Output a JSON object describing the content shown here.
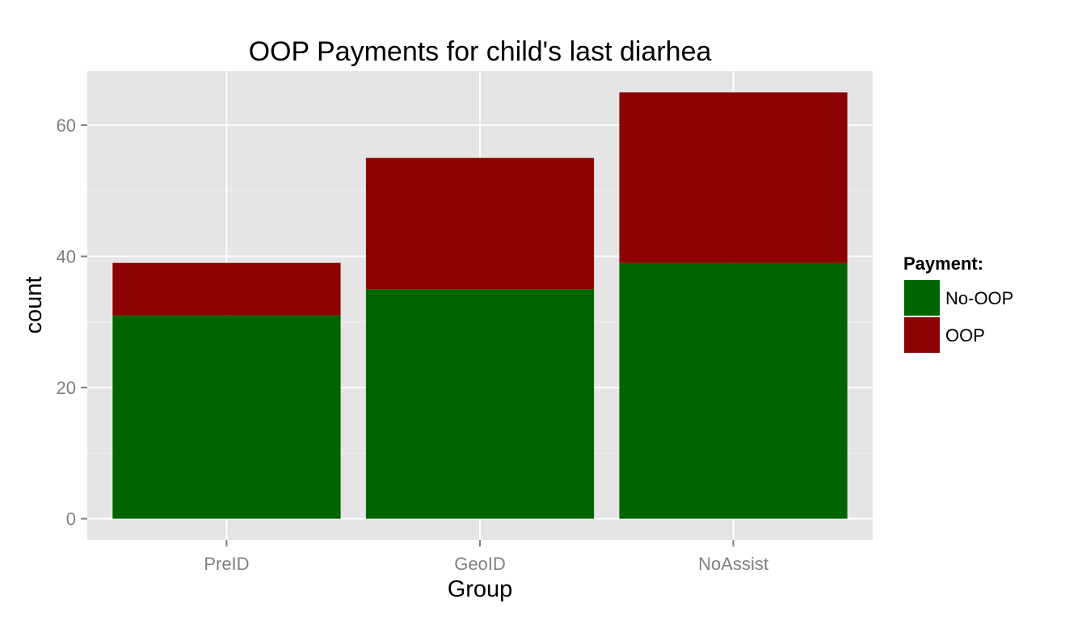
{
  "chart_data": {
    "type": "bar",
    "stacked": true,
    "title": "OOP Payments for child's last diarhea",
    "xlabel": "Group",
    "ylabel": "count",
    "categories": [
      "PreID",
      "GeoID",
      "NoAssist"
    ],
    "series": [
      {
        "name": "No-OOP",
        "values": [
          31,
          35,
          39
        ],
        "color": "#006400"
      },
      {
        "name": "OOP",
        "values": [
          8,
          20,
          26
        ],
        "color": "#8b0000"
      }
    ],
    "ylim": [
      -3.25,
      68.25
    ],
    "yticks": [
      0,
      20,
      40,
      60
    ],
    "grid": true,
    "panel_background": "#e5e5e5",
    "legend": {
      "title": "Payment:",
      "position": "right"
    }
  }
}
